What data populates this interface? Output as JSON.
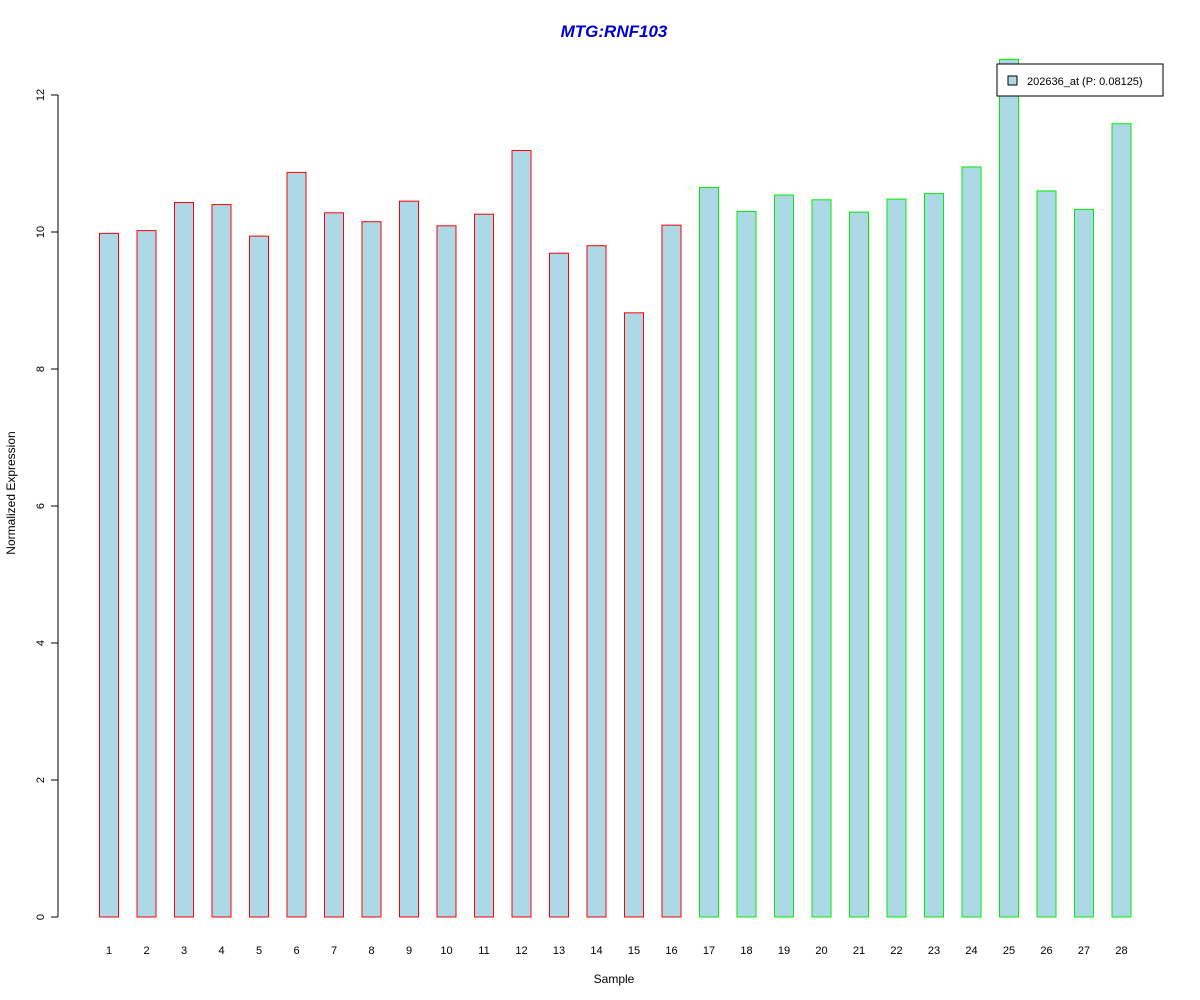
{
  "chart_data": {
    "type": "bar",
    "title": "MTG:RNF103",
    "xlabel": "Sample",
    "ylabel": "Normalized Expression",
    "ylim": [
      0,
      12
    ],
    "yticks": [
      0,
      2,
      4,
      6,
      8,
      10,
      12
    ],
    "categories": [
      "1",
      "2",
      "3",
      "4",
      "5",
      "6",
      "7",
      "8",
      "9",
      "10",
      "11",
      "12",
      "13",
      "14",
      "15",
      "16",
      "17",
      "18",
      "19",
      "20",
      "21",
      "22",
      "23",
      "24",
      "25",
      "26",
      "27",
      "28"
    ],
    "values": [
      9.98,
      10.02,
      10.43,
      10.4,
      9.94,
      10.87,
      10.28,
      10.15,
      10.45,
      10.09,
      10.26,
      11.19,
      9.69,
      9.8,
      8.82,
      10.1,
      10.65,
      10.3,
      10.54,
      10.47,
      10.29,
      10.48,
      10.56,
      10.95,
      12.52,
      10.6,
      10.33,
      11.58
    ],
    "group_outline_colors": [
      "#ff0000",
      "#ff0000",
      "#ff0000",
      "#ff0000",
      "#ff0000",
      "#ff0000",
      "#ff0000",
      "#ff0000",
      "#ff0000",
      "#ff0000",
      "#ff0000",
      "#ff0000",
      "#ff0000",
      "#ff0000",
      "#ff0000",
      "#ff0000",
      "#00ee00",
      "#00ee00",
      "#00ee00",
      "#00ee00",
      "#00ee00",
      "#00ee00",
      "#00ee00",
      "#00ee00",
      "#00ee00",
      "#00ee00",
      "#00ee00",
      "#00ee00"
    ],
    "bar_fill_color": "#add8e6",
    "title_color": "#0000cc",
    "legend": {
      "position": "top-right",
      "entries": [
        {
          "label": "202636_at (P: 0.08125)",
          "color": "#add8e6"
        }
      ]
    },
    "grid": false
  }
}
